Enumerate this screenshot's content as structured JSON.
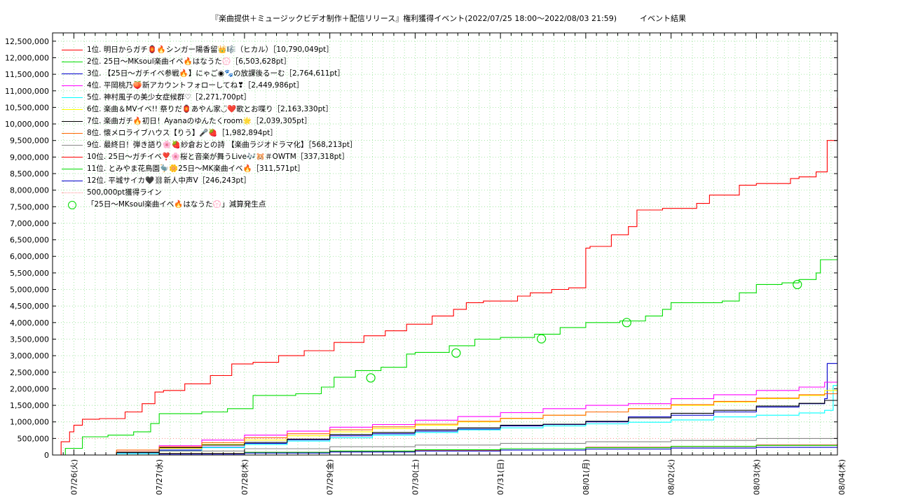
{
  "chart_data": {
    "type": "line",
    "title": "『楽曲提供＋ミュージックビデオ制作＋配信リリース』権利獲得イベント(2022/07/25 18:00～2022/08/03 21:59)　　　イベント結果",
    "xlabel": "",
    "ylabel": "",
    "ylim": [
      0,
      12750000
    ],
    "y_ticks": [
      "0",
      "500,000",
      "1,000,000",
      "1,500,000",
      "2,000,000",
      "2,500,000",
      "3,000,000",
      "3,500,000",
      "4,000,000",
      "4,500,000",
      "5,000,000",
      "5,500,000",
      "6,000,000",
      "6,500,000",
      "7,000,000",
      "7,500,000",
      "8,000,000",
      "8,500,000",
      "9,000,000",
      "9,500,000",
      "10,000,000",
      "10,500,000",
      "11,000,000",
      "11,500,000",
      "12,000,000",
      "12,500,000"
    ],
    "x_ticks": [
      "07/26(火)",
      "07/27(水)",
      "07/28(木)",
      "07/29(金)",
      "07/30(土)",
      "07/31(日)",
      "08/01(月)",
      "08/02(火)",
      "08/03(水)",
      "08/04(木)"
    ],
    "x_unit": "days from 07/26 00:00",
    "xlim": [
      -0.25,
      8.95
    ],
    "grid": true,
    "legend_position": "top-left",
    "series": [
      {
        "name": "1位. 明日からガチ🏮🔥シンガー陽香留👑🎼（ヒカル）［10,790,049pt］",
        "color": "#ff0000",
        "x": [
          -0.25,
          -0.15,
          -0.05,
          0.0,
          0.1,
          0.3,
          0.6,
          0.8,
          0.95,
          1.05,
          1.3,
          1.6,
          1.85,
          2.1,
          2.4,
          2.7,
          3.05,
          3.4,
          3.65,
          3.9,
          4.2,
          4.45,
          4.6,
          4.8,
          5.2,
          5.35,
          5.6,
          5.8,
          6.0,
          6.05,
          6.3,
          6.5,
          6.6,
          6.9,
          7.3,
          7.45,
          7.8,
          8.0,
          8.1,
          8.2,
          8.4,
          8.5,
          8.7,
          8.83,
          8.95
        ],
        "y": [
          0,
          400000,
          700000,
          900000,
          1080000,
          1100000,
          1300000,
          1550000,
          1900000,
          1950000,
          2150000,
          2400000,
          2750000,
          2800000,
          3000000,
          3150000,
          3400000,
          3600000,
          3750000,
          3950000,
          4200000,
          4400000,
          4600000,
          4650000,
          4800000,
          4900000,
          5000000,
          5050000,
          6250000,
          6300000,
          6650000,
          6900000,
          7400000,
          7450000,
          7600000,
          7850000,
          8150000,
          8200000,
          8200000,
          8200000,
          8350000,
          8400000,
          8550000,
          9500000,
          10790049
        ]
      },
      {
        "name": "2位. 25日～MKsoul楽曲イベ🔥はなうた💮［6,503,628pt］",
        "color": "#00dd00",
        "x": [
          -0.25,
          -0.1,
          0.1,
          0.4,
          0.7,
          0.9,
          1.0,
          1.5,
          1.8,
          2.1,
          2.6,
          2.9,
          3.05,
          3.3,
          3.6,
          3.9,
          4.0,
          4.4,
          4.7,
          5.0,
          5.4,
          5.7,
          6.0,
          6.4,
          6.7,
          6.9,
          7.0,
          7.3,
          7.6,
          7.8,
          8.0,
          8.3,
          8.5,
          8.7,
          8.75,
          8.95
        ],
        "y": [
          0,
          200000,
          550000,
          600000,
          700000,
          950000,
          1250000,
          1300000,
          1400000,
          1800000,
          1850000,
          2050000,
          2350000,
          2550000,
          2650000,
          3050000,
          3100000,
          3300000,
          3500000,
          3550000,
          3650000,
          3850000,
          4000000,
          4050000,
          4200000,
          4400000,
          4600000,
          4600000,
          4650000,
          4900000,
          5150000,
          5200000,
          5300000,
          5500000,
          5900000,
          6503628
        ]
      },
      {
        "name": "3位. 【25日～ガチイベ参戦🔥】にゃご◉🐾の放課後るーむ［2,764,611pt］",
        "color": "#0000cc",
        "x": [
          -0.25,
          0.5,
          1.0,
          1.5,
          2.0,
          2.5,
          3.0,
          3.5,
          4.0,
          4.5,
          5.0,
          5.5,
          6.0,
          6.5,
          7.0,
          7.5,
          8.0,
          8.5,
          8.8,
          8.83,
          8.95
        ],
        "y": [
          0,
          70000,
          150000,
          230000,
          350000,
          460000,
          580000,
          640000,
          720000,
          780000,
          880000,
          920000,
          1000000,
          1150000,
          1200000,
          1300000,
          1450000,
          1550000,
          1700000,
          2764611,
          2764611
        ]
      },
      {
        "name": "4位. 平岡桃乃🍑新アカウントフォローしてね❣［2,449,986pt］",
        "color": "#ff00ff",
        "x": [
          -0.25,
          0.5,
          1.0,
          1.5,
          2.0,
          2.5,
          3.0,
          3.5,
          4.0,
          4.5,
          5.0,
          5.5,
          6.0,
          6.5,
          7.0,
          7.5,
          8.0,
          8.5,
          8.8,
          8.95
        ],
        "y": [
          0,
          100000,
          280000,
          450000,
          600000,
          720000,
          840000,
          920000,
          1050000,
          1160000,
          1280000,
          1400000,
          1500000,
          1550000,
          1700000,
          1820000,
          1950000,
          2050000,
          2200000,
          2449986
        ]
      },
      {
        "name": "5位. 神村風子の美少女症候群♡［2,271,700pt］",
        "color": "#00ffff",
        "x": [
          -0.25,
          0.5,
          1.0,
          1.5,
          2.0,
          2.5,
          3.0,
          3.5,
          4.0,
          4.5,
          5.0,
          5.5,
          6.0,
          6.5,
          7.0,
          7.5,
          8.0,
          8.5,
          8.8,
          8.9,
          8.95
        ],
        "y": [
          0,
          40000,
          120000,
          220000,
          320000,
          420000,
          520000,
          600000,
          680000,
          760000,
          820000,
          880000,
          940000,
          990000,
          1060000,
          1150000,
          1200000,
          1270000,
          1350000,
          2100000,
          2271700
        ]
      },
      {
        "name": "6位. 楽曲＆MVイベ!! 祭りだ🏮あやん家◡̈❤️歌とお喋り［2,163,330pt］",
        "color": "#ffff00",
        "x": [
          -0.25,
          0.5,
          1.0,
          1.5,
          2.0,
          2.5,
          3.0,
          3.5,
          4.0,
          4.5,
          5.0,
          5.5,
          6.0,
          6.5,
          7.0,
          7.5,
          8.0,
          8.5,
          8.8,
          8.95
        ],
        "y": [
          0,
          90000,
          200000,
          320000,
          450000,
          580000,
          700000,
          800000,
          900000,
          1000000,
          1100000,
          1200000,
          1300000,
          1400000,
          1500000,
          1600000,
          1700000,
          1800000,
          1950000,
          2163330
        ]
      },
      {
        "name": "7位. 楽曲ガチ🔥初日！Ayanaのゆんたくroom🌟［2,039,305pt］",
        "color": "#000000",
        "x": [
          -0.25,
          0.5,
          1.0,
          1.5,
          2.0,
          2.5,
          3.0,
          3.5,
          4.0,
          4.5,
          5.0,
          5.5,
          6.0,
          6.5,
          7.0,
          7.5,
          8.0,
          8.5,
          8.8,
          8.95
        ],
        "y": [
          0,
          80000,
          220000,
          300000,
          380000,
          480000,
          620000,
          680000,
          760000,
          820000,
          900000,
          930000,
          1020000,
          1120000,
          1260000,
          1350000,
          1480000,
          1560000,
          1650000,
          2039305
        ]
      },
      {
        "name": "8位. 懐メロライブハウス【りう】🎤🍓［1,982,894pt］",
        "color": "#ff6600",
        "x": [
          -0.25,
          0.5,
          1.0,
          1.5,
          2.0,
          2.5,
          3.0,
          3.5,
          4.0,
          4.5,
          5.0,
          5.5,
          6.0,
          6.5,
          7.0,
          7.5,
          8.0,
          8.5,
          8.8,
          8.95
        ],
        "y": [
          0,
          150000,
          250000,
          370000,
          520000,
          640000,
          760000,
          850000,
          930000,
          1020000,
          1110000,
          1200000,
          1300000,
          1400000,
          1520000,
          1620000,
          1720000,
          1820000,
          1850000,
          1982894
        ]
      },
      {
        "name": "9位. 最終日！弾き語り🌸🍓紗倉おとの詩 【楽曲ラジオドラマ化】［568,213pt］",
        "color": "#888888",
        "x": [
          -0.25,
          1.0,
          2.0,
          3.0,
          4.0,
          5.0,
          6.0,
          7.0,
          8.0,
          8.95
        ],
        "y": [
          0,
          120000,
          190000,
          250000,
          300000,
          350000,
          400000,
          440000,
          500000,
          568213
        ]
      },
      {
        "name": "10位. 25日～ガチイベ❣️🌸桜と音楽が舞うLive🎶🐹＃OWTM［337,318pt］",
        "color": "#ff0000",
        "x": [
          -0.25,
          1.0,
          2.0,
          3.0,
          4.0,
          5.0,
          6.0,
          7.0,
          8.0,
          8.95
        ],
        "y": [
          0,
          50000,
          80000,
          110000,
          150000,
          190000,
          230000,
          260000,
          300000,
          337318
        ]
      },
      {
        "name": "11位. とみやま花鳥園🦤🌼25日～MK楽曲イベ🔥［311,571pt］",
        "color": "#00dd00",
        "x": [
          -0.25,
          1.0,
          2.0,
          3.0,
          4.0,
          5.0,
          6.0,
          7.0,
          8.0,
          8.95
        ],
        "y": [
          0,
          40000,
          80000,
          120000,
          160000,
          190000,
          220000,
          260000,
          290000,
          311571
        ]
      },
      {
        "name": "12位. 平城サイカ🖤⛓新人中声V［246,243pt］",
        "color": "#0000cc",
        "x": [
          -0.25,
          1.0,
          2.0,
          3.0,
          4.0,
          5.0,
          6.0,
          7.0,
          8.0,
          8.95
        ],
        "y": [
          0,
          30000,
          60000,
          90000,
          120000,
          150000,
          180000,
          210000,
          230000,
          246243
        ]
      }
    ],
    "reference_line": {
      "name": "500,000pt獲得ライン",
      "value": 500000,
      "color": "#ff9090"
    },
    "markers": {
      "name": "「25日～MKsoul楽曲イベ🔥はなうた💮」減算発生点",
      "color": "#00dd00",
      "x": [
        3.48,
        4.48,
        5.48,
        6.48,
        8.48
      ],
      "y": [
        2330000,
        3080000,
        3510000,
        4000000,
        5150000
      ]
    }
  }
}
